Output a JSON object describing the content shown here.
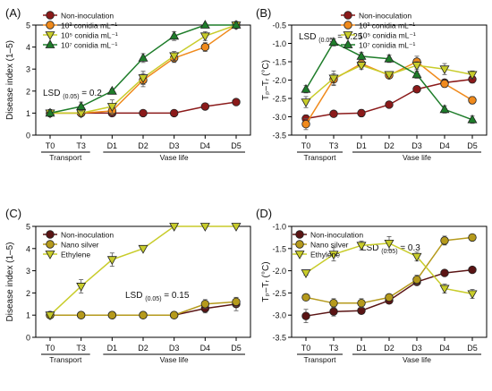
{
  "chart_data": [
    {
      "label": "(A)",
      "type": "line",
      "ylabel": "Disease index (1–5)",
      "ylim": [
        0,
        5
      ],
      "yticks": [
        "0",
        "1",
        "2",
        "3",
        "4",
        "5"
      ],
      "categories": [
        "T0",
        "T3",
        "D1",
        "D2",
        "D3",
        "D4",
        "D5"
      ],
      "groups": [
        {
          "label": "Transport",
          "from": 0,
          "to": 1
        },
        {
          "label": "Vase life",
          "from": 2,
          "to": 6
        }
      ],
      "annotation": {
        "text": "LSD",
        "sub": "(0.05)",
        "rest": " = 0.2"
      },
      "legend": "top-left",
      "series": [
        {
          "name": "Non-inoculation",
          "color": "#8B1A1A",
          "marker": "circle",
          "values": [
            1,
            1,
            1,
            1,
            1,
            1.3,
            1.5
          ],
          "err": [
            0.05,
            0.05,
            0.15,
            0.05,
            0.05,
            0.05,
            0.05
          ]
        },
        {
          "name": "10³ conidia mL⁻¹",
          "color": "#F08A1C",
          "marker": "circle",
          "values": [
            1,
            1,
            1.1,
            2.5,
            3.5,
            4,
            5
          ],
          "err": [
            0.05,
            0.05,
            0.2,
            0.3,
            0.2,
            0.2,
            0.05
          ]
        },
        {
          "name": "10⁵ conidia mL⁻¹",
          "color": "#C8CC2A",
          "marker": "triangle-down",
          "values": [
            1,
            1,
            1.3,
            2.6,
            3.6,
            4.5,
            5
          ],
          "err": [
            0.05,
            0.05,
            0.3,
            0.3,
            0.2,
            0.2,
            0.05
          ]
        },
        {
          "name": "10⁷ conidia mL⁻¹",
          "color": "#1E7D2A",
          "marker": "triangle-up",
          "values": [
            1,
            1.3,
            2,
            3.5,
            4.5,
            5,
            5
          ],
          "err": [
            0.05,
            0.2,
            0.1,
            0.2,
            0.2,
            0.05,
            0.05
          ]
        }
      ]
    },
    {
      "label": "(B)",
      "type": "line",
      "ylabel": "Tₚ–Tᵣ (°C)",
      "ylim": [
        -3.5,
        -0.5
      ],
      "yticks": [
        "-3.5",
        "-3.0",
        "-2.5",
        "-2.0",
        "-1.5",
        "-1.0",
        "-0.5"
      ],
      "categories": [
        "T0",
        "T3",
        "D1",
        "D2",
        "D3",
        "D4",
        "D5"
      ],
      "groups": [
        {
          "label": "Transport",
          "from": 0,
          "to": 1
        },
        {
          "label": "Vase life",
          "from": 2,
          "to": 6
        }
      ],
      "annotation": {
        "text": "LSD",
        "sub": "(0.05)",
        "rest": " = 0.25"
      },
      "legend": "top-right",
      "series": [
        {
          "name": "Non-inoculation",
          "color": "#8B1A1A",
          "marker": "circle",
          "values": [
            -3.05,
            -2.92,
            -2.9,
            -2.67,
            -2.25,
            -2.07,
            -1.98
          ],
          "err": [
            0.1,
            0.05,
            0.1,
            0.05,
            0.05,
            0.05,
            0.1
          ]
        },
        {
          "name": "10³ conidia mL⁻¹",
          "color": "#F08A1C",
          "marker": "circle",
          "values": [
            -3.2,
            -1.98,
            -1.55,
            -1.87,
            -1.5,
            -2.1,
            -2.55
          ],
          "err": [
            0.15,
            0.15,
            0.1,
            0.05,
            0.15,
            0.1,
            0.1
          ]
        },
        {
          "name": "10⁵ conidia mL⁻¹",
          "color": "#C8CC2A",
          "marker": "triangle-down",
          "values": [
            -2.6,
            -1.95,
            -1.6,
            -1.85,
            -1.6,
            -1.7,
            -1.85
          ],
          "err": [
            0.15,
            0.2,
            0.1,
            0.05,
            0.1,
            0.15,
            0.1
          ]
        },
        {
          "name": "10⁷ conidia mL⁻¹",
          "color": "#1E7D2A",
          "marker": "triangle-up",
          "values": [
            -2.25,
            -0.97,
            -1.35,
            -1.42,
            -1.85,
            -2.8,
            -3.08
          ],
          "err": [
            0.1,
            0.1,
            0.1,
            0.1,
            0.1,
            0.1,
            0.1
          ]
        }
      ]
    },
    {
      "label": "(C)",
      "type": "line",
      "ylabel": "Disease index (1–5)",
      "ylim": [
        0,
        5
      ],
      "yticks": [
        "0",
        "1",
        "2",
        "3",
        "4",
        "5"
      ],
      "categories": [
        "T0",
        "T3",
        "D1",
        "D2",
        "D3",
        "D4",
        "D5"
      ],
      "groups": [
        {
          "label": "Transport",
          "from": 0,
          "to": 1
        },
        {
          "label": "Vase life",
          "from": 2,
          "to": 6
        }
      ],
      "annotation": {
        "text": "LSD",
        "sub": "(0.05)",
        "rest": " = 0.15"
      },
      "legend": "top-left",
      "series": [
        {
          "name": "Non-inoculation",
          "color": "#5A1414",
          "marker": "circle",
          "values": [
            1,
            1,
            1,
            1,
            1,
            1.3,
            1.5
          ],
          "err": [
            0.05,
            0.05,
            0.05,
            0.05,
            0.05,
            0.2,
            0.3
          ]
        },
        {
          "name": "Nano silver",
          "color": "#B59A1C",
          "marker": "circle",
          "values": [
            1,
            1,
            1,
            1,
            1,
            1.5,
            1.6
          ],
          "err": [
            0.05,
            0.05,
            0.05,
            0.05,
            0.05,
            0.2,
            0.2
          ]
        },
        {
          "name": "Ethylene",
          "color": "#C8CC2A",
          "marker": "triangle-down",
          "values": [
            1,
            2.3,
            3.5,
            4,
            5,
            5,
            5
          ],
          "err": [
            0.05,
            0.3,
            0.3,
            0.05,
            0.05,
            0.05,
            0.05
          ]
        }
      ]
    },
    {
      "label": "(D)",
      "type": "line",
      "ylabel": "Tₚ–Tᵣ (°C)",
      "ylim": [
        -3.5,
        -1.0
      ],
      "yticks": [
        "-3.5",
        "-3.0",
        "-2.5",
        "-2.0",
        "-1.5",
        "-1.0"
      ],
      "categories": [
        "T0",
        "T3",
        "D1",
        "D2",
        "D3",
        "D4",
        "D5"
      ],
      "groups": [
        {
          "label": "Transport",
          "from": 0,
          "to": 1
        },
        {
          "label": "Vase life",
          "from": 2,
          "to": 6
        }
      ],
      "annotation": {
        "text": "LSD",
        "sub": "(0.05)",
        "rest": " = 0.3"
      },
      "legend": "top-left",
      "series": [
        {
          "name": "Non-inoculation",
          "color": "#5A1414",
          "marker": "circle",
          "values": [
            -3.02,
            -2.92,
            -2.9,
            -2.67,
            -2.25,
            -2.05,
            -1.98
          ],
          "err": [
            0.15,
            0.1,
            0.05,
            0.05,
            0.05,
            0.05,
            0.05
          ]
        },
        {
          "name": "Nano silver",
          "color": "#B59A1C",
          "marker": "circle",
          "values": [
            -2.6,
            -2.73,
            -2.73,
            -2.6,
            -2.2,
            -1.32,
            -1.25
          ],
          "err": [
            0.05,
            0.1,
            0.1,
            0.05,
            0.1,
            0.1,
            0.05
          ]
        },
        {
          "name": "Ethylene",
          "color": "#C8CC2A",
          "marker": "triangle-down",
          "values": [
            -2.05,
            -1.63,
            -1.43,
            -1.38,
            -1.68,
            -2.4,
            -2.52
          ],
          "err": [
            0.05,
            0.15,
            0.1,
            0.15,
            0.1,
            0.1,
            0.1
          ]
        }
      ]
    }
  ]
}
